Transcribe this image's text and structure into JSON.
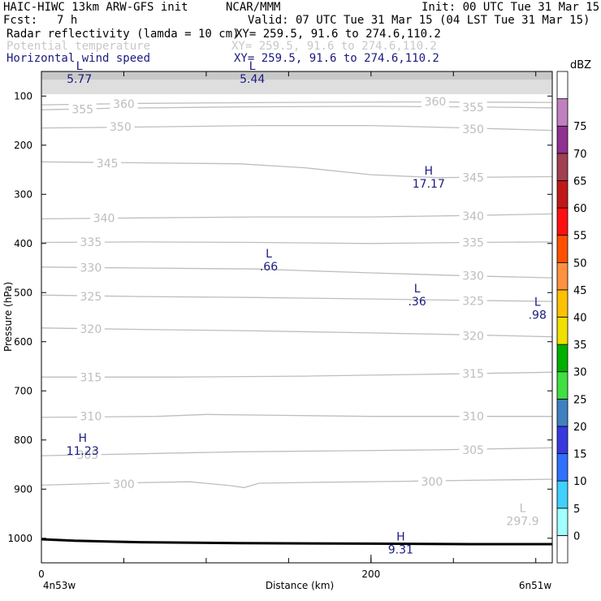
{
  "header": {
    "model": "HAIC-HIWC 13km ARW-GFS init",
    "org": "NCAR/MMM",
    "init": "Init: 00 UTC Tue 31 Mar 15",
    "fcst_label": "Fcst:",
    "fcst_value": "7 h",
    "valid": "Valid: 07 UTC Tue 31 Mar 15 (04 LST Tue 31 Mar 15)"
  },
  "fields": [
    {
      "name": "Radar reflectivity (lamda = 10 cm)",
      "xy": "XY= 259.5, 91.6 to 274.6,110.2",
      "color": "#000000"
    },
    {
      "name": "Potential temperature",
      "xy": "XY= 259.5, 91.6 to 274.6,110.2",
      "color": "#c8c8c8"
    },
    {
      "name": "Horizontal wind speed",
      "xy": "XY= 259.5, 91.6 to 274.6,110.2",
      "color": "#1a1a80"
    }
  ],
  "chart_data": {
    "type": "cross-section",
    "ylabel": "Pressure (hPa)",
    "xlabel": "Distance (km)",
    "x_left_label": "4n53w",
    "x_right_label": "6n51w",
    "xlim": [
      0,
      310
    ],
    "ylim": [
      1050,
      50
    ],
    "x_ticks": [
      0,
      200
    ],
    "x_minor_ticks": [
      0,
      50,
      100,
      150,
      200,
      250,
      300
    ],
    "y_ticks": [
      100,
      200,
      300,
      400,
      500,
      600,
      700,
      800,
      900,
      1000
    ],
    "theta_contours": [
      {
        "label": "300",
        "points": [
          [
            0,
            892
          ],
          [
            40,
            888
          ],
          [
            90,
            885
          ],
          [
            115,
            893
          ],
          [
            123,
            897
          ],
          [
            132,
            888
          ],
          [
            170,
            886
          ],
          [
            220,
            884
          ],
          [
            260,
            882
          ],
          [
            310,
            880
          ]
        ],
        "label_positions": [
          [
            50,
            890
          ],
          [
            237,
            885
          ]
        ]
      },
      {
        "label": "305",
        "points": [
          [
            0,
            832
          ],
          [
            60,
            828
          ],
          [
            120,
            824
          ],
          [
            180,
            822
          ],
          [
            240,
            820
          ],
          [
            310,
            816
          ]
        ],
        "label_positions": [
          [
            28,
            830
          ],
          [
            262,
            820
          ]
        ]
      },
      {
        "label": "310",
        "points": [
          [
            0,
            754
          ],
          [
            70,
            752
          ],
          [
            100,
            748
          ],
          [
            150,
            750
          ],
          [
            200,
            752
          ],
          [
            310,
            752
          ]
        ],
        "label_positions": [
          [
            30,
            752
          ],
          [
            262,
            752
          ]
        ]
      },
      {
        "label": "315",
        "points": [
          [
            0,
            672
          ],
          [
            80,
            672
          ],
          [
            160,
            670
          ],
          [
            240,
            666
          ],
          [
            310,
            662
          ]
        ],
        "label_positions": [
          [
            30,
            672
          ],
          [
            262,
            665
          ]
        ]
      },
      {
        "label": "320",
        "points": [
          [
            0,
            572
          ],
          [
            60,
            575
          ],
          [
            130,
            578
          ],
          [
            200,
            582
          ],
          [
            260,
            586
          ],
          [
            310,
            590
          ]
        ],
        "label_positions": [
          [
            30,
            574
          ],
          [
            262,
            588
          ]
        ]
      },
      {
        "label": "325",
        "points": [
          [
            0,
            505
          ],
          [
            60,
            508
          ],
          [
            130,
            510
          ],
          [
            200,
            513
          ],
          [
            260,
            516
          ],
          [
            310,
            518
          ]
        ],
        "label_positions": [
          [
            30,
            508
          ],
          [
            262,
            517
          ]
        ]
      },
      {
        "label": "330",
        "points": [
          [
            0,
            448
          ],
          [
            60,
            450
          ],
          [
            130,
            452
          ],
          [
            200,
            460
          ],
          [
            260,
            466
          ],
          [
            310,
            470
          ]
        ],
        "label_positions": [
          [
            30,
            449
          ],
          [
            262,
            466
          ]
        ]
      },
      {
        "label": "335",
        "points": [
          [
            0,
            398
          ],
          [
            60,
            397
          ],
          [
            130,
            398
          ],
          [
            200,
            400
          ],
          [
            260,
            398
          ],
          [
            310,
            397
          ]
        ],
        "label_positions": [
          [
            30,
            397
          ],
          [
            262,
            398
          ]
        ]
      },
      {
        "label": "340",
        "points": [
          [
            0,
            350
          ],
          [
            60,
            348
          ],
          [
            130,
            346
          ],
          [
            200,
            346
          ],
          [
            260,
            343
          ],
          [
            310,
            340
          ]
        ],
        "label_positions": [
          [
            38,
            348
          ],
          [
            262,
            344
          ]
        ]
      },
      {
        "label": "345",
        "points": [
          [
            0,
            234
          ],
          [
            60,
            236
          ],
          [
            120,
            238
          ],
          [
            160,
            246
          ],
          [
            200,
            260
          ],
          [
            240,
            266
          ],
          [
            310,
            264
          ]
        ],
        "label_positions": [
          [
            40,
            237
          ],
          [
            262,
            266
          ]
        ]
      },
      {
        "label": "350",
        "points": [
          [
            0,
            165
          ],
          [
            60,
            163
          ],
          [
            130,
            160
          ],
          [
            200,
            160
          ],
          [
            260,
            165
          ],
          [
            310,
            170
          ]
        ],
        "label_positions": [
          [
            48,
            162
          ],
          [
            262,
            167
          ]
        ]
      },
      {
        "label": "355",
        "points": [
          [
            0,
            128
          ],
          [
            40,
            125
          ],
          [
            120,
            122
          ],
          [
            200,
            121
          ],
          [
            260,
            122
          ],
          [
            310,
            124
          ]
        ],
        "label_positions": [
          [
            25,
            127
          ],
          [
            262,
            123
          ]
        ]
      },
      {
        "label": "360",
        "points": [
          [
            0,
            118
          ],
          [
            60,
            115
          ],
          [
            150,
            113
          ],
          [
            230,
            112
          ],
          [
            310,
            113
          ]
        ],
        "label_positions": [
          [
            50,
            116
          ],
          [
            239,
            111
          ]
        ]
      }
    ],
    "theta_extrema": [
      {
        "kind": "L",
        "value": "297.9",
        "x": 292,
        "p": 960
      }
    ],
    "wind_extrema": [
      {
        "kind": "L",
        "value": "5.77",
        "x": 23,
        "p": 55
      },
      {
        "kind": "L",
        "value": "5.44",
        "x": 128,
        "p": 55
      },
      {
        "kind": "H",
        "value": "17.17",
        "x": 235,
        "p": 268
      },
      {
        "kind": "L",
        "value": ".66",
        "x": 138,
        "p": 437
      },
      {
        "kind": "L",
        "value": ".36",
        "x": 228,
        "p": 508
      },
      {
        "kind": "L",
        "value": ".98",
        "x": 301,
        "p": 535
      },
      {
        "kind": "H",
        "value": "11.23",
        "x": 25,
        "p": 812
      },
      {
        "kind": "H",
        "value": "9.31",
        "x": 218,
        "p": 1013
      }
    ],
    "terrain": [
      [
        0,
        1002
      ],
      [
        20,
        1005
      ],
      [
        60,
        1008
      ],
      [
        120,
        1010
      ],
      [
        200,
        1011
      ],
      [
        260,
        1012
      ],
      [
        310,
        1012
      ]
    ],
    "colorbar": {
      "unit": "dBZ",
      "levels": [
        0,
        5,
        10,
        15,
        20,
        25,
        30,
        35,
        40,
        45,
        50,
        55,
        60,
        65,
        70,
        75
      ],
      "colors": [
        "#ffffff",
        "#a0ffff",
        "#40d0ff",
        "#3070ff",
        "#3838e0",
        "#4080c0",
        "#40e040",
        "#00b000",
        "#f0e000",
        "#ffc000",
        "#ff9040",
        "#ff5000",
        "#ff1010",
        "#c01818",
        "#a04050",
        "#903090",
        "#c080c0",
        "#ffffff"
      ]
    }
  }
}
